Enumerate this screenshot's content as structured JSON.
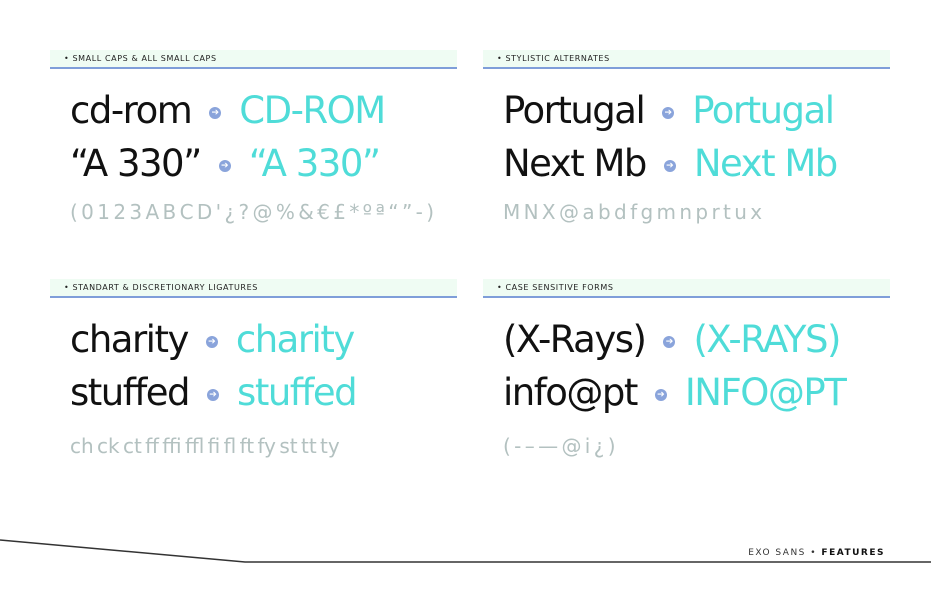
{
  "sections": [
    {
      "title": "• SMALL CAPS & ALL SMALL CAPS",
      "rows": [
        {
          "source": "cd-rom",
          "result": "CD-ROM"
        },
        {
          "source": "“A 330”",
          "result": "“A 330”"
        }
      ],
      "glyphs": "( 0 1 2 3 A B C D ' ¿ ? @ % & € £ * º ª “ ” - )"
    },
    {
      "title": "• STYLISTIC ALTERNATES",
      "rows": [
        {
          "source": "Portugal",
          "result": "Portugal"
        },
        {
          "source": "Next Mb",
          "result": "Next Mb"
        }
      ],
      "glyphs": "M N X @ a b d f g m n p r t u x"
    },
    {
      "title": "• STANDART & DISCRETIONARY LIGATURES",
      "rows": [
        {
          "source": "charity",
          "result": "charity"
        },
        {
          "source": "stuffed",
          "result": "stuffed"
        }
      ],
      "glyphs": "ch ck ct ff ffi ffl fi fl ft fy st tt ty"
    },
    {
      "title": "• CASE SENSITIVE FORMS",
      "rows": [
        {
          "source": "(X-Rays)",
          "result": "(X-RAYS)"
        },
        {
          "source": "info@pt",
          "result": "INFO@PT"
        }
      ],
      "glyphs": "( - – — @ i ¿ )"
    }
  ],
  "footer": {
    "family": "EXO SANS",
    "separator": " • ",
    "page": "FEATURES"
  },
  "colors": {
    "accent_cyan": "#4fdcd8",
    "arrow_blue": "#8aa4db",
    "glyph_grey": "#b3c1c0",
    "header_bg": "#effcf3",
    "header_rule": "#7f9ed9"
  },
  "icons": {
    "arrow": "arrow-right-circle-icon"
  }
}
